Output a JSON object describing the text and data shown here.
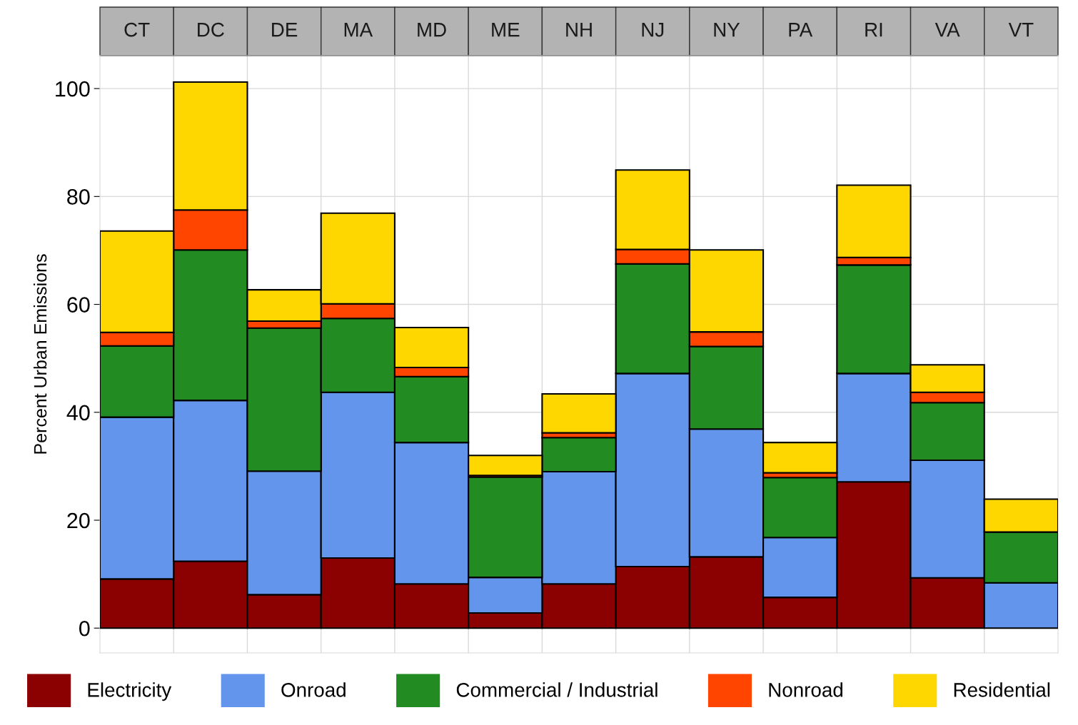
{
  "chart_data": {
    "type": "bar",
    "stacked": true,
    "ylabel": "Percent Urban Emissions",
    "categories": [
      "CT",
      "DC",
      "DE",
      "MA",
      "MD",
      "ME",
      "NH",
      "NJ",
      "NY",
      "PA",
      "RI",
      "VA",
      "VT"
    ],
    "series": [
      {
        "name": "Electricity",
        "color": "#8b0000",
        "values": [
          9.1,
          12.4,
          6.2,
          13.0,
          8.2,
          2.8,
          8.2,
          11.4,
          13.2,
          5.7,
          27.1,
          9.3,
          null
        ]
      },
      {
        "name": "Onroad",
        "color": "#6495ed",
        "values": [
          30.0,
          29.8,
          22.9,
          30.7,
          26.2,
          6.6,
          20.8,
          35.8,
          23.7,
          11.1,
          20.1,
          21.8,
          8.4
        ]
      },
      {
        "name": "Commercial / Industrial",
        "color": "#228b22",
        "values": [
          13.2,
          27.9,
          26.5,
          13.7,
          12.2,
          18.6,
          6.3,
          20.3,
          15.3,
          11.1,
          20.1,
          10.7,
          9.4
        ]
      },
      {
        "name": "Nonroad",
        "color": "#ff4500",
        "values": [
          2.5,
          7.4,
          1.3,
          2.7,
          1.7,
          0.3,
          0.9,
          2.7,
          2.7,
          0.9,
          1.4,
          1.9,
          null
        ]
      },
      {
        "name": "Residential",
        "color": "#ffd700",
        "values": [
          18.8,
          23.7,
          5.8,
          16.8,
          7.4,
          3.7,
          7.2,
          14.7,
          15.2,
          5.6,
          13.4,
          5.1,
          6.1
        ]
      }
    ],
    "ylim": [
      -4.6,
      106.1
    ],
    "yticks": [
      0,
      20,
      40,
      60,
      80,
      100
    ],
    "grid": true,
    "legend": "bottom"
  }
}
